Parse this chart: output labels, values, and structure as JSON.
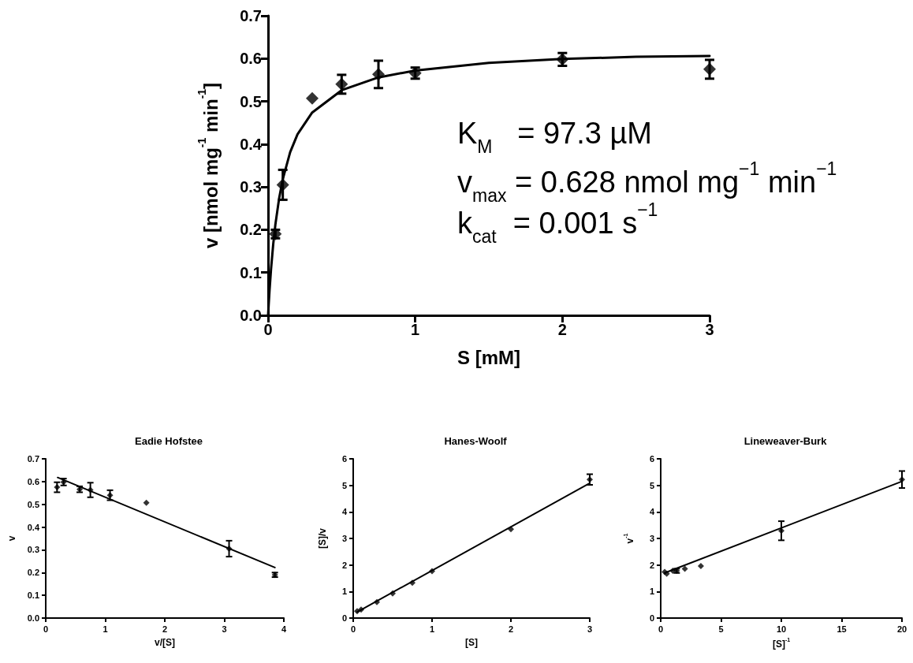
{
  "chart_data": [
    {
      "type": "scatter",
      "xlabel": "S [mM]",
      "ylabel": "v [nmol mg$^{-1}$ min$^{-1}$]",
      "xlim": [
        0,
        3
      ],
      "xticks": [
        0,
        1,
        2,
        3
      ],
      "ylim": [
        0,
        0.7
      ],
      "yticks": [
        {
          "value": 0,
          "label": "0.0"
        },
        0.1,
        0.2,
        0.3,
        0.4,
        0.5,
        0.6,
        0.7
      ],
      "marker": "diamond",
      "annotations": [
        "K$_{M}$   = 97.3 µM",
        "v$_{max}$ = 0.628 nmol mg$^{−1}$ min$^{−1}$",
        "k$_{cat}$  = 0.001 s$^{−1}$"
      ],
      "series": [
        {
          "type": "scatter",
          "color": "#000000",
          "x": [
            0.05,
            0.1,
            0.3,
            0.5,
            0.75,
            1,
            2,
            3
          ],
          "values": [
            0.19,
            0.305,
            0.507,
            0.54,
            0.563,
            0.566,
            0.598,
            0.575
          ],
          "errors": [
            0.01,
            0.035,
            null,
            0.022,
            0.032,
            0.013,
            0.015,
            0.022
          ]
        },
        {
          "type": "line",
          "color": "#000000",
          "marker": "none",
          "x": [
            0,
            0.01,
            0.02,
            0.035,
            0.05,
            0.075,
            0.1,
            0.15,
            0.2,
            0.3,
            0.5,
            0.75,
            1,
            1.5,
            2,
            2.5,
            3
          ],
          "values": [
            0,
            0.058,
            0.107,
            0.166,
            0.213,
            0.273,
            0.318,
            0.381,
            0.423,
            0.474,
            0.526,
            0.556,
            0.572,
            0.59,
            0.599,
            0.604,
            0.606
          ]
        }
      ]
    },
    {
      "type": "scatter",
      "title": "Eadie Hofstee",
      "xlabel": "v/[S]",
      "ylabel": "v",
      "xlim": [
        0,
        4
      ],
      "xticks": [
        0,
        1,
        2,
        3,
        4
      ],
      "ylim": [
        0,
        0.7
      ],
      "yticks": [
        {
          "value": 0,
          "label": "0.0"
        },
        0.1,
        0.2,
        0.3,
        0.4,
        0.5,
        0.6,
        0.7
      ],
      "marker": "diamond",
      "series": [
        {
          "type": "scatter",
          "color": "#000000",
          "x": [
            3.85,
            3.08,
            1.69,
            1.08,
            0.75,
            0.57,
            0.3,
            0.19
          ],
          "values": [
            0.19,
            0.305,
            0.507,
            0.54,
            0.563,
            0.566,
            0.598,
            0.575
          ],
          "errors": [
            0.01,
            0.035,
            null,
            0.022,
            0.032,
            0.013,
            0.015,
            0.022
          ]
        },
        {
          "type": "line",
          "color": "#000000",
          "marker": "none",
          "x": [
            0.2,
            3.85
          ],
          "values": [
            0.618,
            0.222
          ]
        }
      ]
    },
    {
      "type": "scatter",
      "title": "Hanes-Woolf",
      "xlabel": "[S]",
      "ylabel": "[S]/v",
      "xlim": [
        0,
        3
      ],
      "xticks": [
        0,
        1,
        2,
        3
      ],
      "ylim": [
        0,
        6
      ],
      "yticks": [
        0,
        1,
        2,
        3,
        4,
        5,
        6
      ],
      "marker": "diamond",
      "series": [
        {
          "type": "scatter",
          "color": "#000000",
          "x": [
            0.05,
            0.1,
            0.3,
            0.5,
            0.75,
            1,
            2,
            3
          ],
          "values": [
            0.26,
            0.32,
            0.6,
            0.93,
            1.33,
            1.77,
            3.35,
            5.22
          ],
          "errors": [
            null,
            null,
            null,
            null,
            null,
            null,
            null,
            0.2
          ]
        },
        {
          "type": "line",
          "color": "#000000",
          "marker": "none",
          "x": [
            0.05,
            3
          ],
          "values": [
            0.23,
            5.08
          ]
        }
      ]
    },
    {
      "type": "scatter",
      "title": "Lineweaver-Burk",
      "xlabel": "[S]$^{-1}$",
      "ylabel": "v$^{-1}$",
      "xlim": [
        0,
        20
      ],
      "xticks": [
        0,
        5,
        10,
        15,
        20
      ],
      "ylim": [
        0,
        6
      ],
      "yticks": [
        0,
        1,
        2,
        3,
        4,
        5,
        6
      ],
      "marker": "diamond",
      "series": [
        {
          "type": "scatter",
          "color": "#000000",
          "x": [
            20,
            10,
            3.33,
            2,
            1.33,
            1,
            0.5,
            0.33
          ],
          "values": [
            5.22,
            3.29,
            1.96,
            1.86,
            1.78,
            1.78,
            1.67,
            1.74
          ],
          "errors": [
            0.32,
            0.36,
            null,
            null,
            0.08,
            null,
            null,
            null
          ]
        },
        {
          "type": "line",
          "color": "#000000",
          "marker": "none",
          "x": [
            0.33,
            20
          ],
          "values": [
            1.7,
            5.15
          ]
        }
      ]
    }
  ]
}
